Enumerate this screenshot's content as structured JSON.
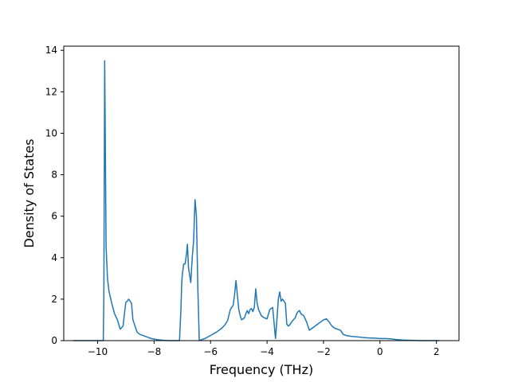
{
  "chart_data": {
    "type": "line",
    "title": "",
    "xlabel": "Frequency (THz)",
    "ylabel": "Density of States",
    "xlim": [
      -11.2,
      2.8
    ],
    "ylim": [
      0,
      14.2
    ],
    "x_ticks": [
      -10,
      -8,
      -6,
      -4,
      -2,
      0,
      2
    ],
    "x_tick_labels": [
      "−10",
      "−8",
      "−6",
      "−4",
      "−2",
      "0",
      "2"
    ],
    "y_ticks": [
      0,
      2,
      4,
      6,
      8,
      10,
      12,
      14
    ],
    "y_tick_labels": [
      "0",
      "2",
      "4",
      "6",
      "8",
      "10",
      "12",
      "14"
    ],
    "grid": false,
    "legend": "none",
    "series": [
      {
        "color": "#1f77b4",
        "x": [
          -10.85,
          -9.8,
          -9.78,
          -9.75,
          -9.7,
          -9.65,
          -9.6,
          -9.5,
          -9.4,
          -9.3,
          -9.2,
          -9.1,
          -9.05,
          -9.0,
          -8.95,
          -8.9,
          -8.8,
          -8.75,
          -8.7,
          -8.6,
          -8.5,
          -8.3,
          -8.1,
          -7.9,
          -7.7,
          -7.5,
          -7.3,
          -7.1,
          -7.05,
          -7.02,
          -7.0,
          -6.95,
          -6.9,
          -6.85,
          -6.82,
          -6.78,
          -6.7,
          -6.65,
          -6.6,
          -6.55,
          -6.5,
          -6.45,
          -6.4,
          -6.35,
          -6.2,
          -6.0,
          -5.8,
          -5.6,
          -5.5,
          -5.4,
          -5.3,
          -5.2,
          -5.15,
          -5.1,
          -5.05,
          -5.0,
          -4.95,
          -4.9,
          -4.85,
          -4.8,
          -4.75,
          -4.7,
          -4.65,
          -4.6,
          -4.55,
          -4.5,
          -4.45,
          -4.4,
          -4.35,
          -4.3,
          -4.25,
          -4.2,
          -4.1,
          -4.0,
          -3.9,
          -3.8,
          -3.7,
          -3.65,
          -3.6,
          -3.55,
          -3.5,
          -3.45,
          -3.4,
          -3.35,
          -3.3,
          -3.25,
          -3.2,
          -3.1,
          -3.0,
          -2.95,
          -2.9,
          -2.85,
          -2.8,
          -2.7,
          -2.6,
          -2.5,
          -2.45,
          -2.4,
          -2.3,
          -2.2,
          -2.1,
          -2.0,
          -1.9,
          -1.8,
          -1.7,
          -1.6,
          -1.5,
          -1.4,
          -1.35,
          -1.3,
          -1.2,
          -1.0,
          -0.8,
          -0.6,
          -0.4,
          -0.2,
          0.0,
          0.2,
          0.4,
          0.6,
          0.8,
          1.0,
          1.2,
          1.4,
          1.6,
          1.8,
          2.0,
          2.1
        ],
        "y": [
          0.0,
          0.0,
          2.0,
          13.5,
          4.5,
          3.0,
          2.4,
          1.8,
          1.3,
          1.0,
          0.55,
          0.7,
          1.3,
          1.85,
          1.9,
          2.0,
          1.8,
          1.0,
          0.8,
          0.4,
          0.3,
          0.2,
          0.1,
          0.05,
          0.02,
          0.0,
          0.0,
          0.0,
          1.5,
          2.8,
          3.2,
          3.7,
          3.7,
          4.2,
          4.65,
          3.5,
          2.8,
          4.0,
          4.8,
          6.8,
          6.0,
          2.5,
          0.0,
          0.03,
          0.1,
          0.25,
          0.4,
          0.6,
          0.75,
          0.95,
          1.5,
          1.7,
          2.2,
          2.9,
          2.2,
          1.5,
          1.2,
          1.0,
          1.05,
          1.1,
          1.3,
          1.45,
          1.3,
          1.5,
          1.55,
          1.4,
          1.6,
          2.5,
          1.8,
          1.5,
          1.35,
          1.2,
          1.1,
          1.05,
          1.5,
          1.6,
          0.1,
          1.0,
          2.0,
          2.35,
          1.9,
          2.0,
          1.9,
          1.8,
          0.8,
          0.7,
          0.75,
          0.95,
          1.1,
          1.3,
          1.4,
          1.45,
          1.3,
          1.2,
          0.9,
          0.5,
          0.55,
          0.6,
          0.7,
          0.8,
          0.9,
          1.0,
          1.05,
          0.9,
          0.7,
          0.6,
          0.55,
          0.5,
          0.4,
          0.3,
          0.25,
          0.2,
          0.18,
          0.15,
          0.13,
          0.12,
          0.1,
          0.1,
          0.08,
          0.05,
          0.03,
          0.02,
          0.01,
          0.0,
          0.0,
          0.0,
          0.0,
          0.0
        ]
      }
    ]
  }
}
